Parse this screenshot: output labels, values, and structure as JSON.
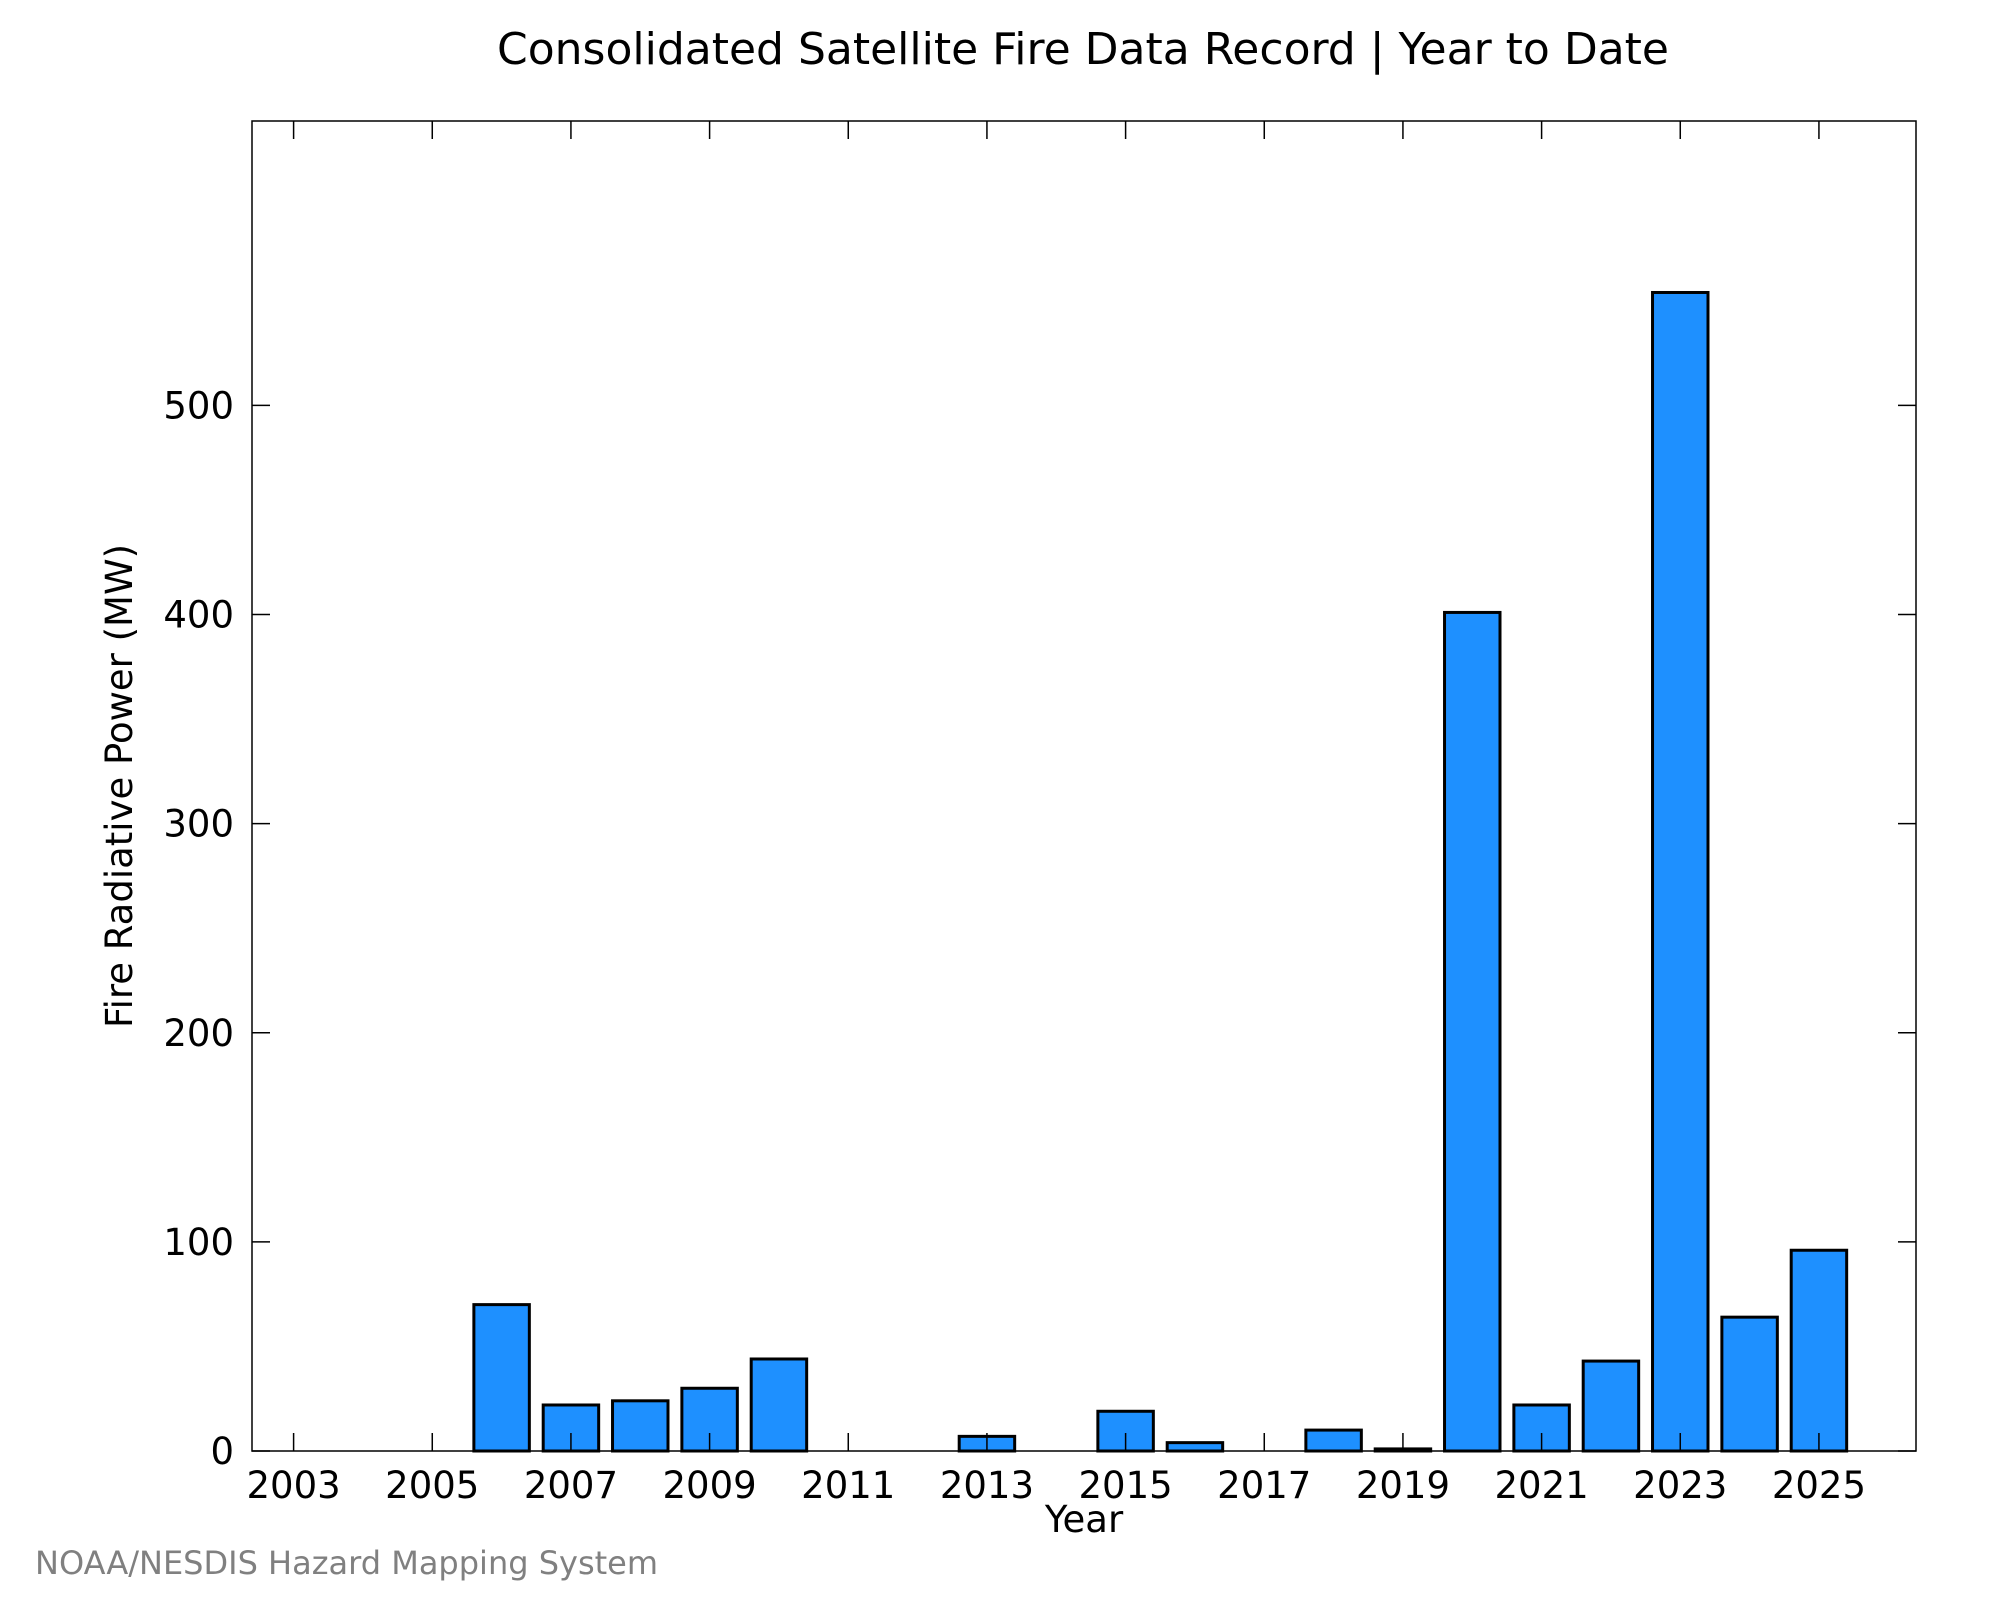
{
  "chart_data": {
    "type": "bar",
    "title": "Consolidated Satellite Fire Data Record | Year to Date",
    "xlabel": "Year",
    "ylabel": "Fire Radiative Power (MW)",
    "categories": [
      "2003",
      "2004",
      "2005",
      "2006",
      "2007",
      "2008",
      "2009",
      "2010",
      "2011",
      "2012",
      "2013",
      "2014",
      "2015",
      "2016",
      "2017",
      "2018",
      "2019",
      "2020",
      "2021",
      "2022",
      "2023",
      "2024",
      "2025"
    ],
    "values": [
      0,
      0,
      0,
      70,
      22,
      24,
      30,
      44,
      0,
      0,
      7,
      0,
      19,
      4,
      0,
      10,
      1,
      401,
      22,
      43,
      554,
      64,
      96
    ],
    "x_tick_labels": [
      "2003",
      "2005",
      "2007",
      "2009",
      "2011",
      "2013",
      "2015",
      "2017",
      "2019",
      "2021",
      "2023",
      "2025"
    ],
    "y_ticks": [
      0,
      100,
      200,
      300,
      400,
      500
    ],
    "y_tick_labels": [
      "0",
      "100",
      "200",
      "300",
      "400",
      "500"
    ],
    "ylim": [
      0,
      636
    ],
    "grid": false,
    "bar_color": "#1e90ff",
    "bar_edge_color": "#000000"
  },
  "source": "NOAA/NESDIS Hazard Mapping System"
}
